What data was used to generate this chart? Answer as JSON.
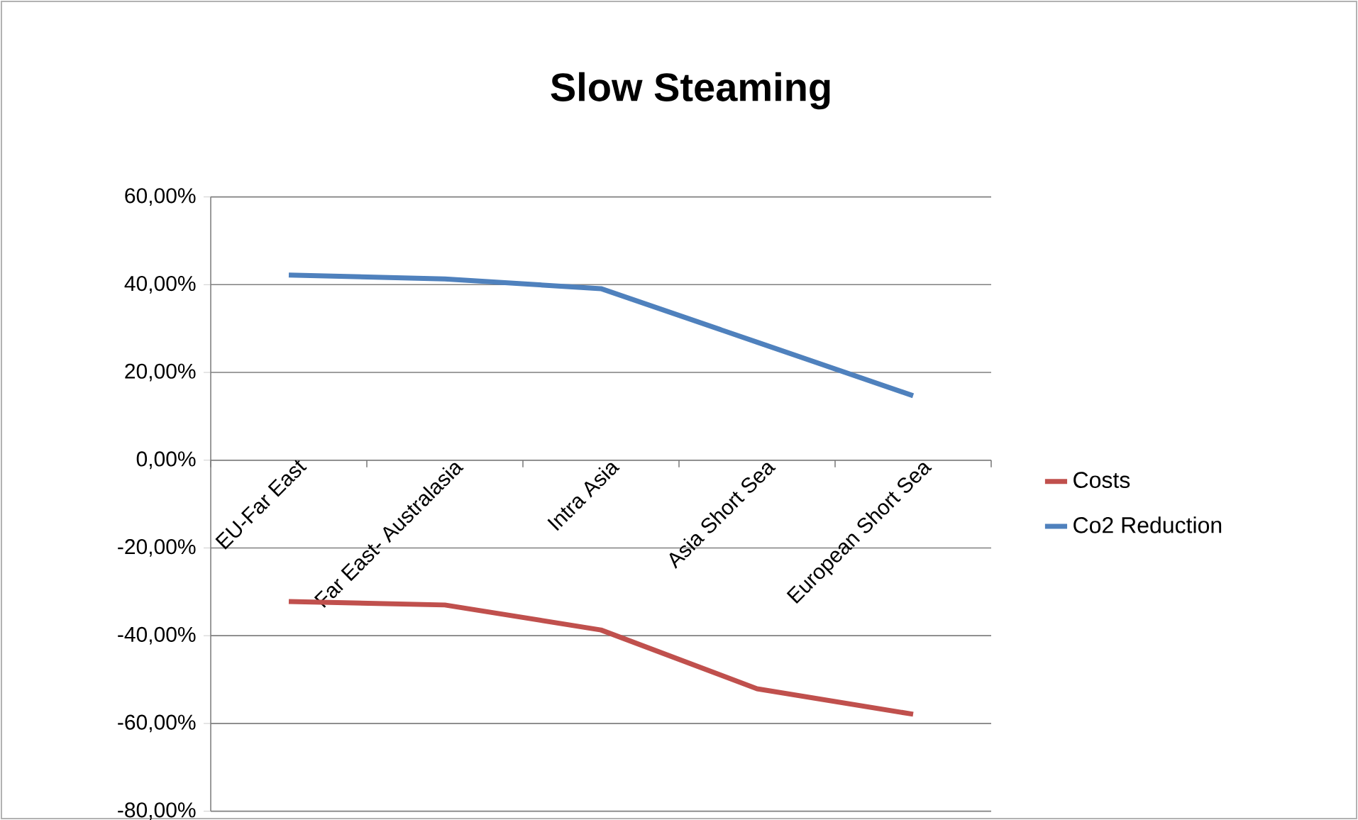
{
  "chart_data": {
    "type": "line",
    "title": "Slow Steaming",
    "categories": [
      "EU-Far East",
      "Far East- Australasia",
      "Intra Asia",
      "Asia Short Sea",
      "European Short Sea"
    ],
    "series": [
      {
        "name": "Costs",
        "color": "#c0504d",
        "values": [
          -32.2,
          -33.0,
          -38.7,
          -52.1,
          -57.9
        ]
      },
      {
        "name": "Co2 Reduction",
        "color": "#4f81bd",
        "values": [
          42.2,
          41.3,
          39.1,
          26.9,
          14.7
        ]
      }
    ],
    "ylim": [
      -80,
      60
    ],
    "yticks": [
      {
        "value": -80,
        "label": "-80,00%"
      },
      {
        "value": -60,
        "label": "-60,00%"
      },
      {
        "value": -40,
        "label": "-40,00%"
      },
      {
        "value": -20,
        "label": "-20,00%"
      },
      {
        "value": 0,
        "label": "0,00%"
      },
      {
        "value": 20,
        "label": "20,00%"
      },
      {
        "value": 40,
        "label": "40,00%"
      },
      {
        "value": 60,
        "label": "60,00%"
      }
    ],
    "grid": "y",
    "legend": "right",
    "marker": "none",
    "line_style": "solid"
  }
}
